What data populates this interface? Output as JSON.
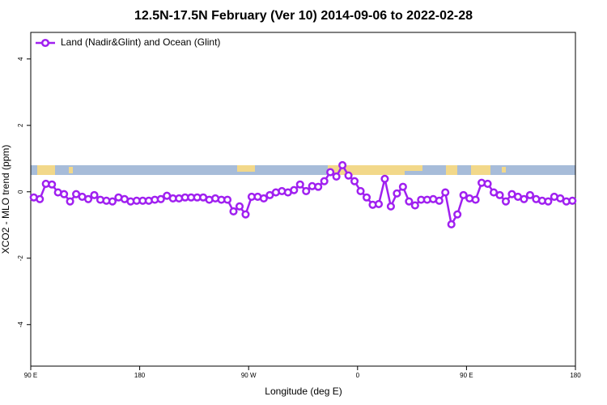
{
  "chart_data": {
    "type": "line",
    "title": "12.5N-17.5N February (Ver 10)   2014-09-06 to 2022-02-28",
    "x_label": "Longitude (deg E)",
    "y_label": "XCO2 - MLO trend (ppm)",
    "xlim": [
      90,
      540
    ],
    "ylim": [
      -5.25,
      4.8
    ],
    "xticks": [
      {
        "value": 90,
        "label": "90 E"
      },
      180,
      {
        "value": 270,
        "label": "90 W"
      },
      {
        "value": 360,
        "label": "0"
      },
      {
        "value": 450,
        "label": "90 E"
      },
      {
        "value": 540,
        "label": "180"
      }
    ],
    "yticks": [
      -4,
      -2,
      0,
      2,
      4
    ],
    "grid": false,
    "legend": "top-left",
    "x": [
      92.5,
      97.5,
      102.5,
      107.5,
      112.5,
      117.5,
      122.5,
      127.5,
      132.5,
      137.5,
      142.5,
      147.5,
      152.5,
      157.5,
      162.5,
      167.5,
      172.5,
      177.5,
      182.5,
      187.5,
      192.5,
      197.5,
      202.5,
      207.5,
      212.5,
      217.5,
      222.5,
      227.5,
      232.5,
      237.5,
      242.5,
      247.5,
      252.5,
      257.5,
      262.5,
      267.5,
      272.5,
      277.5,
      282.5,
      287.5,
      292.5,
      297.5,
      302.5,
      307.5,
      312.5,
      317.5,
      322.5,
      327.5,
      332.5,
      337.5,
      342.5,
      347.5,
      352.5,
      357.5,
      362.5,
      367.5,
      372.5,
      377.5,
      382.5,
      387.5,
      392.5,
      397.5,
      402.5,
      407.5,
      412.5,
      417.5,
      422.5,
      427.5,
      432.5,
      437.5,
      442.5,
      447.5,
      452.5,
      457.5,
      462.5,
      467.5,
      472.5,
      477.5,
      482.5,
      487.5,
      492.5,
      497.5,
      502.5,
      507.5,
      512.5,
      517.5,
      522.5,
      527.5,
      532.5,
      537.5
    ],
    "series": [
      {
        "name": "Land (Nadir&Glint) and Ocean (Glint)",
        "color": "#a020f0",
        "values": [
          -0.17,
          -0.22,
          0.24,
          0.22,
          -0.02,
          -0.07,
          -0.29,
          -0.07,
          -0.15,
          -0.22,
          -0.1,
          -0.24,
          -0.27,
          -0.29,
          -0.17,
          -0.22,
          -0.29,
          -0.27,
          -0.27,
          -0.27,
          -0.24,
          -0.22,
          -0.12,
          -0.2,
          -0.2,
          -0.17,
          -0.17,
          -0.17,
          -0.17,
          -0.24,
          -0.2,
          -0.24,
          -0.24,
          -0.59,
          -0.44,
          -0.68,
          -0.15,
          -0.15,
          -0.2,
          -0.1,
          -0.02,
          0.02,
          -0.02,
          0.05,
          0.22,
          0.02,
          0.17,
          0.15,
          0.32,
          0.59,
          0.46,
          0.8,
          0.49,
          0.32,
          0.02,
          -0.17,
          -0.39,
          -0.37,
          0.39,
          -0.44,
          -0.05,
          0.15,
          -0.29,
          -0.41,
          -0.24,
          -0.24,
          -0.22,
          -0.27,
          -0.02,
          -0.98,
          -0.68,
          -0.1,
          -0.2,
          -0.24,
          0.27,
          0.24,
          -0.02,
          -0.1,
          -0.29,
          -0.07,
          -0.15,
          -0.22,
          -0.1,
          -0.22,
          -0.27,
          -0.29,
          -0.15,
          -0.2,
          -0.29,
          -0.27
        ]
      }
    ]
  }
}
